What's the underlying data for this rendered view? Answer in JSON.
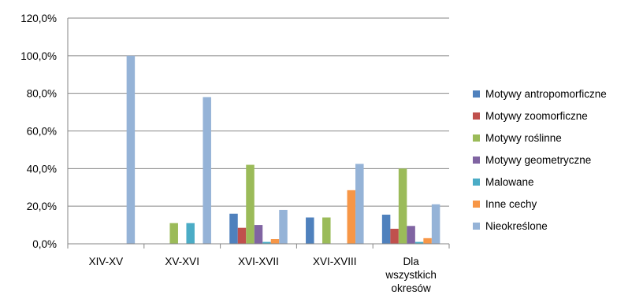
{
  "chart_data": {
    "type": "bar",
    "title": "",
    "xlabel": "",
    "ylabel": "",
    "categories": [
      "XIV-XV",
      "XV-XVI",
      "XVI-XVII",
      "XVI-XVIII",
      "Dla wszystkich okresów"
    ],
    "category_lines": [
      [
        "XIV-XV"
      ],
      [
        "XV-XVI"
      ],
      [
        "XVI-XVII"
      ],
      [
        "XVI-XVIII"
      ],
      [
        "Dla",
        "wszystkich",
        "okresów"
      ]
    ],
    "ylim": [
      0,
      120
    ],
    "y_ticks": [
      0,
      20,
      40,
      60,
      80,
      100,
      120
    ],
    "y_tick_labels": [
      "0,0%",
      "20,0%",
      "40,0%",
      "60,0%",
      "80,0%",
      "100,0%",
      "120,0%"
    ],
    "grid": true,
    "legend_position": "right",
    "series": [
      {
        "name": "Motywy antropomorficzne",
        "color": "#4F81BD",
        "values": [
          0,
          0,
          16,
          14,
          15.5
        ]
      },
      {
        "name": "Motywy zoomorficzne",
        "color": "#C0504D",
        "values": [
          0,
          0,
          8.5,
          0,
          8
        ]
      },
      {
        "name": "Motywy roślinne",
        "color": "#9BBB59",
        "values": [
          0,
          11,
          42,
          14,
          40
        ]
      },
      {
        "name": "Motywy geometryczne",
        "color": "#8064A2",
        "values": [
          0,
          0,
          10,
          0,
          9.5
        ]
      },
      {
        "name": "Malowane",
        "color": "#4BACC6",
        "values": [
          0,
          11,
          1,
          0,
          1
        ]
      },
      {
        "name": "Inne cechy",
        "color": "#F79646",
        "values": [
          0,
          0,
          2.5,
          28.5,
          3
        ]
      },
      {
        "name": "Nieokreślone",
        "color": "#95B3D7",
        "values": [
          100,
          78,
          18,
          42.5,
          21
        ]
      }
    ]
  }
}
